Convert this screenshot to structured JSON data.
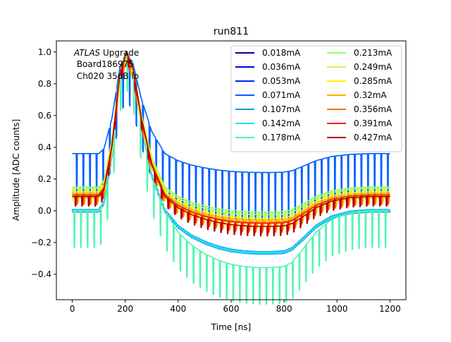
{
  "chart_data": {
    "type": "line",
    "title": "run811",
    "xlabel": "Time [ns]",
    "ylabel": "Amplitude [ADC counts]",
    "xlim": [
      -60,
      1260
    ],
    "ylim": [
      -0.56,
      1.07
    ],
    "xticks": [
      0,
      200,
      400,
      600,
      800,
      1000,
      1200
    ],
    "xtick_labels": [
      "0",
      "200",
      "400",
      "600",
      "800",
      "1000",
      "1200"
    ],
    "yticks": [
      -0.4,
      -0.2,
      0.0,
      0.2,
      0.4,
      0.6,
      0.8,
      1.0
    ],
    "ytick_labels": [
      "−0.4",
      "−0.2",
      "0.0",
      "0.2",
      "0.4",
      "0.6",
      "0.8",
      "1.0"
    ],
    "grid": false,
    "legend_position": "upper-right",
    "legend_columns": 2,
    "annotation": {
      "line1_italic": "ATLAS",
      "line1_rest": " Upgrade",
      "line2": " Board186975",
      "line3": " Ch020 35dB lo"
    },
    "series": [
      {
        "name": "0.018mA",
        "color": "#00008f",
        "offset": 0.0,
        "amp": 1.0,
        "neg_scale": 1.0,
        "spike": 0.0
      },
      {
        "name": "0.036mA",
        "color": "#0000df",
        "offset": 0.0,
        "amp": 1.0,
        "neg_scale": 1.0,
        "spike": 0.0
      },
      {
        "name": "0.053mA",
        "color": "#0020ff",
        "offset": 0.0,
        "amp": 1.0,
        "neg_scale": 1.0,
        "spike": 0.0
      },
      {
        "name": "0.071mA",
        "color": "#0060ff",
        "offset": 0.36,
        "amp": 0.64,
        "neg_scale": 0.7,
        "spike": -0.3
      },
      {
        "name": "0.107mA",
        "color": "#00a0e0",
        "offset": 0.0,
        "amp": 1.0,
        "neg_scale": 1.0,
        "spike": 0.0
      },
      {
        "name": "0.142mA",
        "color": "#20e0f0",
        "offset": 0.0,
        "amp": 1.0,
        "neg_scale": 1.0,
        "spike": 0.0
      },
      {
        "name": "0.178mA",
        "color": "#50f5b0",
        "offset": 0.0,
        "amp": 1.0,
        "neg_scale": 1.35,
        "spike": -0.23
      },
      {
        "name": "0.213mA",
        "color": "#90ff70",
        "offset": 0.15,
        "amp": 0.85,
        "neg_scale": 0.7,
        "spike": -0.07
      },
      {
        "name": "0.249mA",
        "color": "#c0ff40",
        "offset": 0.14,
        "amp": 0.86,
        "neg_scale": 0.72,
        "spike": -0.06
      },
      {
        "name": "0.285mA",
        "color": "#fff000",
        "offset": 0.12,
        "amp": 0.88,
        "neg_scale": 0.72,
        "spike": -0.06
      },
      {
        "name": "0.32mA",
        "color": "#ffb000",
        "offset": 0.11,
        "amp": 0.89,
        "neg_scale": 0.72,
        "spike": -0.06
      },
      {
        "name": "0.356mA",
        "color": "#ff7000",
        "offset": 0.1,
        "amp": 0.9,
        "neg_scale": 0.72,
        "spike": -0.06
      },
      {
        "name": "0.391mA",
        "color": "#ff2000",
        "offset": 0.1,
        "amp": 0.9,
        "neg_scale": 0.75,
        "spike": -0.06
      },
      {
        "name": "0.427mA",
        "color": "#b00000",
        "offset": 0.09,
        "amp": 0.91,
        "neg_scale": 0.78,
        "spike": -0.06
      }
    ],
    "base_shape": {
      "t": [
        0,
        100,
        120,
        150,
        180,
        205,
        230,
        260,
        300,
        350,
        400,
        450,
        500,
        550,
        600,
        650,
        700,
        750,
        800,
        830,
        870,
        920,
        980,
        1050,
        1120,
        1200
      ],
      "y": [
        0.0,
        0.0,
        0.05,
        0.35,
        0.85,
        1.0,
        0.88,
        0.55,
        0.22,
        0.0,
        -0.1,
        -0.16,
        -0.2,
        -0.23,
        -0.25,
        -0.26,
        -0.265,
        -0.265,
        -0.26,
        -0.24,
        -0.18,
        -0.1,
        -0.04,
        -0.01,
        0.0,
        0.0
      ]
    },
    "spike_period_ns": 25
  }
}
